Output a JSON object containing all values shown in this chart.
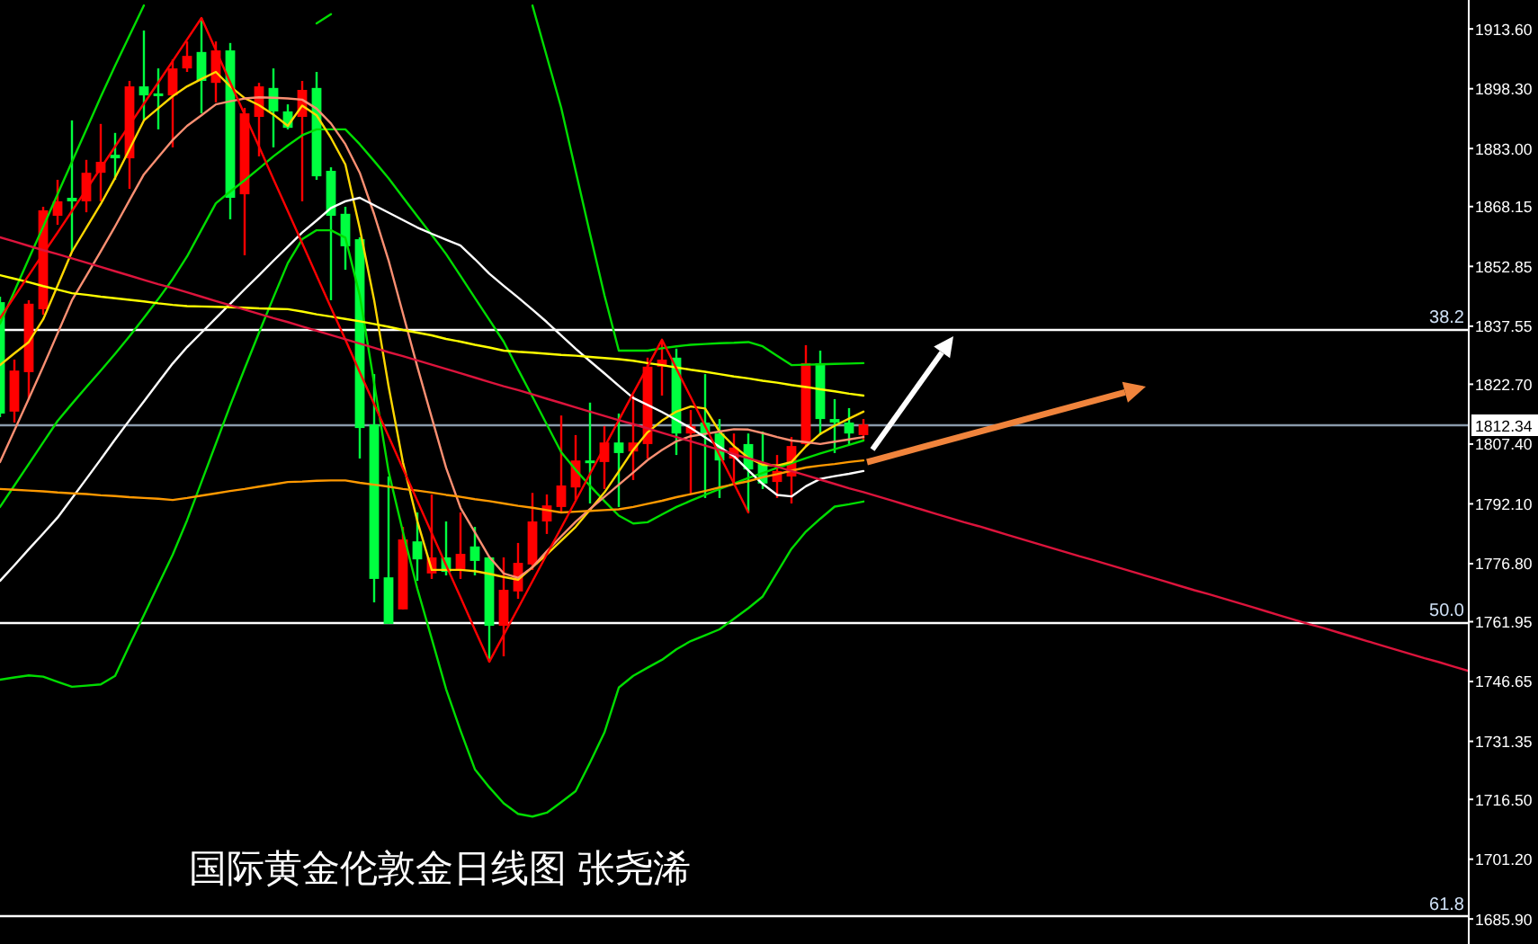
{
  "chart_data": {
    "type": "candlestick",
    "title": "国际黄金伦敦金日线图 张尧浠",
    "categories": [
      null,
      null,
      null,
      null,
      null,
      null,
      null,
      null,
      null,
      null,
      null,
      null,
      null,
      null,
      null,
      null,
      null,
      null,
      null,
      null,
      null,
      null,
      null,
      null,
      null,
      null,
      null,
      null,
      null,
      null,
      null,
      null,
      null,
      null,
      null,
      null,
      null,
      null,
      null,
      null,
      null,
      null,
      null,
      null,
      null,
      null,
      null,
      null,
      null,
      null,
      null,
      null,
      null,
      null,
      null,
      null,
      null,
      null,
      null,
      null,
      null,
      null,
      null,
      null,
      null,
      null,
      null,
      null,
      null,
      null,
      null,
      null,
      null,
      null,
      null,
      null,
      null,
      null,
      null,
      null,
      null,
      null,
      null,
      null,
      null,
      null,
      null,
      null,
      null,
      null,
      null,
      null,
      null,
      null,
      null,
      null,
      null,
      null,
      null,
      null,
      null,
      null,
      null
    ],
    "ylim": [
      1679.5,
      1921.0
    ],
    "tick_labels": "y",
    "yticks": [
      {
        "value": 1913.6,
        "label": "1913.60"
      },
      {
        "value": 1898.3,
        "label": "1898.30"
      },
      {
        "value": 1883.0,
        "label": "1883.00"
      },
      {
        "value": 1868.15,
        "label": "1868.15"
      },
      {
        "value": 1852.85,
        "label": "1852.85"
      },
      {
        "value": 1837.55,
        "label": "1837.55"
      },
      {
        "value": 1822.7,
        "label": "1822.70"
      },
      {
        "value": 1807.4,
        "label": "1807.40"
      },
      {
        "value": 1792.1,
        "label": "1792.10"
      },
      {
        "value": 1776.8,
        "label": "1776.80"
      },
      {
        "value": 1761.95,
        "label": "1761.95"
      },
      {
        "value": 1746.65,
        "label": "1746.65"
      },
      {
        "value": 1731.35,
        "label": "1731.35"
      },
      {
        "value": 1716.5,
        "label": "1716.50"
      },
      {
        "value": 1701.2,
        "label": "1701.20"
      },
      {
        "value": 1685.9,
        "label": "1685.90"
      }
    ],
    "ohlc": [
      [
        1843.7,
        1845.1,
        1814.3,
        1815.2
      ],
      [
        1815.7,
        1829.0,
        1812.9,
        1826.2
      ],
      [
        1825.8,
        1844.2,
        1818.9,
        1843.3
      ],
      [
        1841.9,
        1868.1,
        1840.5,
        1867.2
      ],
      [
        1865.8,
        1875.0,
        1863.5,
        1869.5
      ],
      [
        1870.4,
        1890.2,
        1856.6,
        1869.5
      ],
      [
        1869.5,
        1880.1,
        1866.7,
        1876.8
      ],
      [
        1876.8,
        1889.3,
        1869.5,
        1879.6
      ],
      [
        1881.4,
        1887.0,
        1875.0,
        1880.5
      ],
      [
        1880.5,
        1900.3,
        1872.7,
        1898.9
      ],
      [
        1898.9,
        1913.2,
        1890.2,
        1896.6
      ],
      [
        1897.1,
        1903.5,
        1887.9,
        1896.6
      ],
      [
        1896.6,
        1905.8,
        1883.3,
        1903.5
      ],
      [
        1903.5,
        1910.4,
        1902.6,
        1906.7
      ],
      [
        1907.7,
        1916.4,
        1892.0,
        1900.3
      ],
      [
        1899.8,
        1910.4,
        1894.8,
        1908.1
      ],
      [
        1908.1,
        1910.0,
        1864.9,
        1870.4
      ],
      [
        1871.3,
        1893.4,
        1855.7,
        1892.0
      ],
      [
        1891.1,
        1899.8,
        1881.0,
        1898.9
      ],
      [
        1898.5,
        1903.5,
        1883.3,
        1892.5
      ],
      [
        1892.5,
        1894.3,
        1887.9,
        1888.3
      ],
      [
        1891.1,
        1900.3,
        1869.5,
        1898.0
      ],
      [
        1898.5,
        1902.6,
        1875.0,
        1875.9
      ],
      [
        1877.3,
        1878.2,
        1844.2,
        1865.8
      ],
      [
        1866.3,
        1868.1,
        1852.0,
        1858.0
      ],
      [
        1859.8,
        1860.3,
        1803.7,
        1811.5
      ],
      [
        1812.4,
        1825.3,
        1766.9,
        1772.9
      ],
      [
        1773.3,
        1799.1,
        1761.4,
        1761.4
      ],
      [
        1765.1,
        1786.2,
        1765.1,
        1783.0
      ],
      [
        1782.5,
        1789.9,
        1772.4,
        1777.9
      ],
      [
        1774.3,
        1794.5,
        1772.9,
        1778.4
      ],
      [
        1778.4,
        1787.6,
        1773.8,
        1774.7
      ],
      [
        1775.2,
        1789.9,
        1772.9,
        1779.3
      ],
      [
        1781.2,
        1786.2,
        1773.8,
        1777.5
      ],
      [
        1778.4,
        1778.4,
        1751.7,
        1760.9
      ],
      [
        1760.9,
        1778.4,
        1753.1,
        1770.1
      ],
      [
        1769.7,
        1782.1,
        1767.8,
        1777.0
      ],
      [
        1776.6,
        1794.9,
        1775.2,
        1787.6
      ],
      [
        1787.6,
        1794.5,
        1784.4,
        1791.7
      ],
      [
        1791.3,
        1814.7,
        1789.9,
        1796.8
      ],
      [
        1796.3,
        1809.7,
        1793.1,
        1803.2
      ],
      [
        1803.2,
        1818.0,
        1792.2,
        1802.8
      ],
      [
        1802.8,
        1812.0,
        1795.9,
        1807.8
      ],
      [
        1807.8,
        1815.2,
        1791.3,
        1805.1
      ],
      [
        1805.5,
        1819.8,
        1798.2,
        1807.8
      ],
      [
        1807.4,
        1829.5,
        1803.7,
        1827.2
      ],
      [
        1827.2,
        1833.6,
        1819.8,
        1829.0
      ],
      [
        1829.5,
        1831.8,
        1804.6,
        1810.1
      ],
      [
        1810.1,
        1816.1,
        1794.5,
        1812.0
      ],
      [
        1812.9,
        1825.3,
        1793.6,
        1810.1
      ],
      [
        1810.1,
        1813.8,
        1793.6,
        1803.2
      ],
      [
        1803.7,
        1810.1,
        1797.3,
        1806.5
      ],
      [
        1807.4,
        1810.1,
        1789.9,
        1800.9
      ],
      [
        1802.3,
        1810.6,
        1795.9,
        1797.3
      ],
      [
        1797.7,
        1804.6,
        1793.6,
        1800.5
      ],
      [
        1799.1,
        1809.2,
        1792.2,
        1806.9
      ],
      [
        1807.4,
        1832.7,
        1806.9,
        1828.1
      ],
      [
        1828.1,
        1831.3,
        1809.7,
        1813.8
      ],
      [
        1813.8,
        1818.9,
        1805.1,
        1812.9
      ],
      [
        1812.9,
        1816.6,
        1807.4,
        1810.1
      ],
      [
        1809.7,
        1813.8,
        1808.3,
        1812.4
      ],
      null,
      null,
      null,
      null,
      null,
      null,
      null,
      null,
      null,
      null,
      null,
      null,
      null,
      null,
      null,
      null,
      null,
      null,
      null,
      null,
      null,
      null,
      null,
      null,
      null,
      null,
      null,
      null,
      null,
      null,
      null,
      null,
      null,
      null,
      null,
      null,
      null,
      null,
      null,
      null,
      null,
      null
    ],
    "colors": [
      "#00ff40",
      "#ff0000",
      "#ff0000",
      "#ff0000",
      "#ff0000",
      "#00ff40",
      "#ff0000",
      "#ff0000",
      "#00ff40",
      "#ff0000",
      "#00ff40",
      "#00ff40",
      "#ff0000",
      "#ff0000",
      "#00ff40",
      "#ff0000",
      "#00ff40",
      "#ff0000",
      "#ff0000",
      "#00ff40",
      "#00ff40",
      "#ff0000",
      "#00ff40",
      "#00ff40",
      "#00ff40",
      "#00ff40",
      "#00ff40",
      "#00ff40",
      "#ff0000",
      "#00ff40",
      "#ff0000",
      "#00ff40",
      "#ff0000",
      "#00ff40",
      "#00ff40",
      "#ff0000",
      "#ff0000",
      "#ff0000",
      "#ff0000",
      "#ff0000",
      "#ff0000",
      "#00ff40",
      "#ff0000",
      "#00ff40",
      "#ff0000",
      "#ff0000",
      "#ff0000",
      "#00ff40",
      "#ff0000",
      "#00ff40",
      "#00ff40",
      "#ff0000",
      "#00ff40",
      "#00ff40",
      "#ff0000",
      "#ff0000",
      "#ff0000",
      "#00ff40",
      "#00ff40",
      "#00ff40",
      "#ff0000",
      null,
      null,
      null,
      null,
      null,
      null,
      null,
      null,
      null,
      null,
      null,
      null,
      null,
      null,
      null,
      null,
      null,
      null,
      null,
      null,
      null,
      null,
      null,
      null,
      null,
      null,
      null,
      null,
      null,
      null,
      null,
      null,
      null,
      null,
      null,
      null,
      null,
      null,
      null,
      null,
      null,
      null
    ],
    "series": [
      {
        "type": "line",
        "color": "#00dd00",
        "values": [
          1838.2,
          1846.5,
          1854.8,
          1863.0,
          1871.3,
          1879.6,
          1887.9,
          1896.2,
          1904.2,
          1911.9,
          1919.6,
          null,
          null,
          null,
          null,
          null,
          null,
          null,
          null,
          null,
          null,
          null,
          1915.0,
          1917.4,
          null,
          null,
          null,
          null,
          null,
          null,
          null,
          null,
          null,
          null,
          null,
          null,
          null,
          1919.6,
          1906.5,
          1893.4,
          1877.3,
          1861.2,
          1845.5,
          1831.3,
          1831.3,
          1831.3,
          1831.9,
          1832.4,
          1832.8,
          1833.0,
          1833.2,
          1833.3,
          1833.5,
          1832.4,
          1830.0,
          1827.6,
          1827.7,
          1827.8,
          1827.9,
          1828.0,
          1828.1,
          null,
          null,
          null,
          null,
          null,
          null,
          null,
          null,
          null,
          null,
          null,
          null,
          null,
          null,
          null,
          null,
          null,
          null,
          null,
          null,
          null,
          null,
          null,
          null,
          null,
          null,
          null,
          null,
          null,
          null,
          null,
          null,
          null,
          null,
          null,
          null,
          null,
          null,
          null,
          null,
          null,
          null
        ]
      },
      {
        "type": "line",
        "color": "#00dd00",
        "values": [
          1791.3,
          1796.8,
          1802.3,
          1807.8,
          1813.3,
          1817.7,
          1822.0,
          1826.2,
          1830.5,
          1835.0,
          1839.7,
          1844.5,
          1849.6,
          1855.4,
          1862.2,
          1869.0,
          1872.0,
          1874.9,
          1877.9,
          1881.0,
          1883.8,
          1886.4,
          1887.9,
          1887.9,
          1887.9,
          1884.1,
          1879.8,
          1875.4,
          1870.5,
          1865.7,
          1860.9,
          1856.0,
          1850.4,
          1844.8,
          1839.2,
          1833.6,
          1826.5,
          1819.5,
          1812.4,
          1805.3,
          1800.8,
          1796.7,
          1792.8,
          1789.1,
          1787.1,
          1787.4,
          1789.4,
          1791.3,
          1792.9,
          1794.4,
          1795.9,
          1797.3,
          1798.7,
          1800.0,
          1801.3,
          1802.5,
          1803.8,
          1805.0,
          1806.1,
          1807.2,
          1808.3,
          null,
          null,
          null,
          null,
          null,
          null,
          null,
          null,
          null,
          null,
          null,
          null,
          null,
          null,
          null,
          null,
          null,
          null,
          null,
          null,
          null,
          null,
          null,
          null,
          null,
          null,
          null,
          null,
          null,
          null,
          null,
          null,
          null,
          null,
          null,
          null,
          null,
          null,
          null,
          null,
          null,
          null
        ]
      },
      {
        "type": "line",
        "color": "#00dd00",
        "values": [
          1747.1,
          1747.7,
          1748.2,
          1747.9,
          1746.6,
          1745.3,
          1745.6,
          1745.9,
          1748.1,
          1756.0,
          1763.6,
          1771.4,
          1779.1,
          1787.9,
          1797.7,
          1807.5,
          1817.3,
          1826.7,
          1835.9,
          1844.9,
          1853.7,
          1859.8,
          1862.1,
          1862.1,
          1860.2,
          1845.4,
          1822.9,
          1800.4,
          1784.9,
          1770.4,
          1757.6,
          1744.7,
          1734.1,
          1724.2,
          1719.6,
          1715.5,
          1712.8,
          1712.1,
          1713.1,
          1715.8,
          1718.6,
          1725.9,
          1733.6,
          1745.1,
          1748.1,
          1750.2,
          1752.2,
          1754.9,
          1757.0,
          1758.5,
          1760.0,
          1762.7,
          1765.4,
          1768.4,
          1774.5,
          1780.6,
          1785.0,
          1788.3,
          1791.4,
          1792.0,
          1792.7,
          null,
          null,
          null,
          null,
          null,
          null,
          null,
          null,
          null,
          null,
          null,
          null,
          null,
          null,
          null,
          null,
          null,
          null,
          null,
          null,
          null,
          null,
          null,
          null,
          null,
          null,
          null,
          null,
          null,
          null,
          null,
          null,
          null,
          null,
          null,
          null,
          null,
          null,
          null,
          null,
          null,
          null
        ]
      },
      {
        "type": "line",
        "color": "#ffd700",
        "values": [
          1827.6,
          1830.6,
          1833.5,
          1839.3,
          1847.9,
          1856.6,
          1862.7,
          1868.8,
          1875.5,
          1882.8,
          1890.2,
          1893.3,
          1896.4,
          1898.9,
          1900.8,
          1902.6,
          1898.9,
          1895.9,
          1894.1,
          1891.7,
          1888.8,
          1894.0,
          1891.5,
          1885.7,
          1878.9,
          1862.6,
          1844.2,
          1822.2,
          1802.7,
          1787.7,
          1775.2,
          1775.2,
          1775.2,
          1774.9,
          1774.2,
          1773.4,
          1772.7,
          1775.9,
          1779.2,
          1782.7,
          1786.2,
          1790.6,
          1795.0,
          1800.4,
          1805.9,
          1810.4,
          1813.4,
          1815.7,
          1817.0,
          1816.5,
          1810.6,
          1806.9,
          1803.9,
          1802.1,
          1801.9,
          1802.8,
          1806.8,
          1810.0,
          1812.1,
          1813.9,
          1815.7,
          null,
          null,
          null,
          null,
          null,
          null,
          null,
          null,
          null,
          null,
          null,
          null,
          null,
          null,
          null,
          null,
          null,
          null,
          null,
          null,
          null,
          null,
          null,
          null,
          null,
          null,
          null,
          null,
          null,
          null,
          null,
          null,
          null,
          null,
          null,
          null,
          null,
          null,
          null,
          null,
          null,
          null
        ]
      },
      {
        "type": "line",
        "color": "#fa8f72",
        "values": [
          1802.8,
          1810.9,
          1819.0,
          1827.2,
          1835.7,
          1844.2,
          1850.4,
          1856.7,
          1863.1,
          1869.8,
          1876.4,
          1880.8,
          1885.2,
          1888.8,
          1891.5,
          1894.3,
          1895.1,
          1895.8,
          1896.1,
          1896.0,
          1895.8,
          1895.5,
          1893.2,
          1889.4,
          1884.1,
          1876.8,
          1866.2,
          1854.4,
          1840.8,
          1827.2,
          1814.2,
          1801.3,
          1791.1,
          1784.8,
          1778.5,
          1774.3,
          1773.2,
          1775.9,
          1780.0,
          1783.8,
          1787.5,
          1790.8,
          1793.9,
          1797.0,
          1800.1,
          1803.3,
          1805.9,
          1808.1,
          1809.4,
          1810.0,
          1810.6,
          1811.2,
          1811.1,
          1810.2,
          1809.2,
          1808.3,
          1807.9,
          1807.4,
          1808.0,
          1808.6,
          1809.2,
          null,
          null,
          null,
          null,
          null,
          null,
          null,
          null,
          null,
          null,
          null,
          null,
          null,
          null,
          null,
          null,
          null,
          null,
          null,
          null,
          null,
          null,
          null,
          null,
          null,
          null,
          null,
          null,
          null,
          null,
          null,
          null,
          null,
          null,
          null,
          null,
          null,
          null,
          null,
          null,
          null,
          null
        ]
      },
      {
        "type": "line",
        "color": "#ffffff",
        "values": [
          1772.4,
          1776.4,
          1780.5,
          1784.5,
          1788.6,
          1793.5,
          1798.5,
          1803.5,
          1808.6,
          1813.5,
          1818.3,
          1823.2,
          1828.0,
          1832.2,
          1835.9,
          1839.6,
          1843.3,
          1847.0,
          1850.6,
          1854.3,
          1857.9,
          1861.5,
          1864.6,
          1867.8,
          1869.5,
          1870.4,
          1868.5,
          1866.6,
          1864.7,
          1862.8,
          1861.2,
          1859.7,
          1858.2,
          1854.7,
          1851.0,
          1847.9,
          1844.9,
          1841.8,
          1838.6,
          1835.2,
          1831.8,
          1828.6,
          1825.5,
          1822.3,
          1819.2,
          1817.4,
          1815.6,
          1813.6,
          1811.5,
          1809.1,
          1806.7,
          1804.3,
          1800.7,
          1797.2,
          1794.4,
          1794.0,
          1796.6,
          1798.5,
          1799.2,
          1799.8,
          1800.5,
          null,
          null,
          null,
          null,
          null,
          null,
          null,
          null,
          null,
          null,
          null,
          null,
          null,
          null,
          null,
          null,
          null,
          null,
          null,
          null,
          null,
          null,
          null,
          null,
          null,
          null,
          null,
          null,
          null,
          null,
          null,
          null,
          null,
          null,
          null,
          null,
          null,
          null,
          null,
          null,
          null,
          null
        ]
      },
      {
        "type": "line",
        "color": "#ffff00",
        "values": [
          1850.6,
          1849.7,
          1848.8,
          1847.8,
          1846.9,
          1846.0,
          1845.6,
          1845.1,
          1844.7,
          1844.3,
          1843.9,
          1843.4,
          1843.0,
          1842.7,
          1842.6,
          1842.5,
          1842.4,
          1842.3,
          1842.1,
          1842.0,
          1841.9,
          1841.3,
          1840.6,
          1840.0,
          1839.4,
          1838.8,
          1838.1,
          1837.4,
          1836.6,
          1835.9,
          1835.2,
          1834.3,
          1833.6,
          1832.8,
          1832.1,
          1831.3,
          1831.0,
          1830.8,
          1830.5,
          1830.2,
          1830.0,
          1829.7,
          1829.4,
          1829.1,
          1828.7,
          1828.1,
          1827.6,
          1827.0,
          1826.4,
          1825.9,
          1825.3,
          1824.7,
          1824.2,
          1823.6,
          1823.1,
          1822.5,
          1822.0,
          1821.4,
          1820.9,
          1820.3,
          1819.8,
          null,
          null,
          null,
          null,
          null,
          null,
          null,
          null,
          null,
          null,
          null,
          null,
          null,
          null,
          null,
          null,
          null,
          null,
          null,
          null,
          null,
          null,
          null,
          null,
          null,
          null,
          null,
          null,
          null,
          null,
          null,
          null,
          null,
          null,
          null,
          null,
          null,
          null,
          null,
          null,
          null,
          null
        ]
      },
      {
        "type": "line",
        "color": "#ff9900",
        "values": [
          1795.9,
          1795.7,
          1795.5,
          1795.3,
          1795.0,
          1794.8,
          1794.6,
          1794.3,
          1794.1,
          1793.8,
          1793.6,
          1793.4,
          1793.1,
          1793.6,
          1794.2,
          1794.8,
          1795.4,
          1795.9,
          1796.5,
          1797.1,
          1797.7,
          1797.8,
          1798.0,
          1798.1,
          1798.1,
          1797.5,
          1797.0,
          1796.5,
          1795.9,
          1795.5,
          1795.0,
          1794.4,
          1793.9,
          1793.3,
          1792.8,
          1792.2,
          1791.6,
          1791.1,
          1790.5,
          1789.9,
          1790.1,
          1790.3,
          1790.5,
          1790.7,
          1791.3,
          1792.1,
          1792.9,
          1793.8,
          1794.6,
          1795.4,
          1796.3,
          1797.1,
          1797.9,
          1798.9,
          1799.7,
          1800.6,
          1801.4,
          1801.9,
          1802.3,
          1802.8,
          1803.2,
          null,
          null,
          null,
          null,
          null,
          null,
          null,
          null,
          null,
          null,
          null,
          null,
          null,
          null,
          null,
          null,
          null,
          null,
          null,
          null,
          null,
          null,
          null,
          null,
          null,
          null,
          null,
          null,
          null,
          null,
          null,
          null,
          null,
          null,
          null,
          null,
          null,
          null,
          null,
          null,
          null,
          null
        ]
      },
      {
        "type": "line",
        "color": "#ff0000",
        "values": [
          1839.6,
          1845.1,
          1850.6,
          1856.1,
          1861.5,
          1867.0,
          1872.5,
          1878.0,
          1883.5,
          1889.0,
          1894.5,
          1899.9,
          1905.4,
          1910.9,
          1916.4,
          1908.2,
          1899.9,
          1891.7,
          1883.5,
          1875.2,
          1867.0,
          1858.8,
          1850.5,
          1842.3,
          1834.1,
          1825.8,
          1817.6,
          1809.4,
          1801.1,
          1792.9,
          1784.6,
          1776.4,
          1768.2,
          1759.9,
          1751.7,
          1758.6,
          1765.4,
          1772.3,
          1779.2,
          1786.0,
          1792.9,
          1799.8,
          1806.6,
          1813.5,
          1820.4,
          1827.2,
          1834.1,
          1826.7,
          1819.4,
          1812.0,
          1804.6,
          1797.3,
          1789.9,
          null,
          null,
          null,
          null,
          null,
          null,
          null,
          null,
          null,
          null,
          null,
          null,
          null,
          null,
          null,
          null,
          null,
          null,
          null,
          null,
          null,
          null,
          null,
          null,
          null,
          null,
          null,
          null,
          null,
          null,
          null,
          null,
          null,
          null,
          null,
          null,
          null,
          null,
          null,
          null,
          null,
          null,
          null,
          null,
          null,
          null,
          null,
          null,
          null,
          null
        ]
      },
      {
        "type": "line",
        "color": "#dc143c",
        "values": [
          1860.3,
          1859.2,
          1858.1,
          1857.0,
          1856.0,
          1854.9,
          1853.8,
          1852.7,
          1851.6,
          1850.5,
          1849.4,
          1848.3,
          1847.3,
          1846.2,
          1845.1,
          1844.0,
          1842.9,
          1841.8,
          1840.7,
          1839.6,
          1838.6,
          1837.5,
          1836.4,
          1835.3,
          1834.2,
          1833.1,
          1832.0,
          1830.9,
          1829.9,
          1828.8,
          1827.7,
          1826.6,
          1825.5,
          1824.4,
          1823.3,
          1822.2,
          1821.2,
          1820.1,
          1819.0,
          1817.9,
          1816.8,
          1815.7,
          1814.6,
          1813.5,
          1812.5,
          1811.4,
          1810.3,
          1809.2,
          1808.1,
          1807.0,
          1805.9,
          1804.8,
          1803.8,
          1802.7,
          1801.6,
          1800.5,
          1799.4,
          1798.3,
          1797.2,
          1796.1,
          1795.1,
          1794.0,
          1792.9,
          1791.8,
          1790.7,
          1789.6,
          1788.5,
          1787.4,
          1786.4,
          1785.3,
          1784.2,
          1783.1,
          1782.0,
          1780.9,
          1779.8,
          1778.7,
          1777.7,
          1776.6,
          1775.5,
          1774.4,
          1773.3,
          1772.2,
          1771.1,
          1770.0,
          1769.0,
          1767.9,
          1766.8,
          1765.7,
          1764.6,
          1763.5,
          1762.4,
          1761.3,
          1760.3,
          1759.2,
          1758.1,
          1757.0,
          1755.9,
          1754.8,
          1753.7,
          1752.6,
          1751.6,
          1750.5,
          1749.4
        ]
      }
    ],
    "ref_lines": [
      {
        "axis": "y",
        "value": 1812.34,
        "label": "1812.34",
        "color": "#8a9aac"
      },
      {
        "axis": "y",
        "value": 1837.0,
        "color": "#ffffff"
      },
      {
        "axis": "y",
        "value": 1762.0,
        "color": "#ffffff"
      },
      {
        "axis": "y",
        "value": 1686.9,
        "color": "#ffffff"
      }
    ],
    "annotations": [
      {
        "text": "38.2",
        "y": 1837.0
      },
      {
        "text": "50.0",
        "y": 1762.0
      },
      {
        "text": "61.8",
        "y": 1686.9
      }
    ]
  }
}
